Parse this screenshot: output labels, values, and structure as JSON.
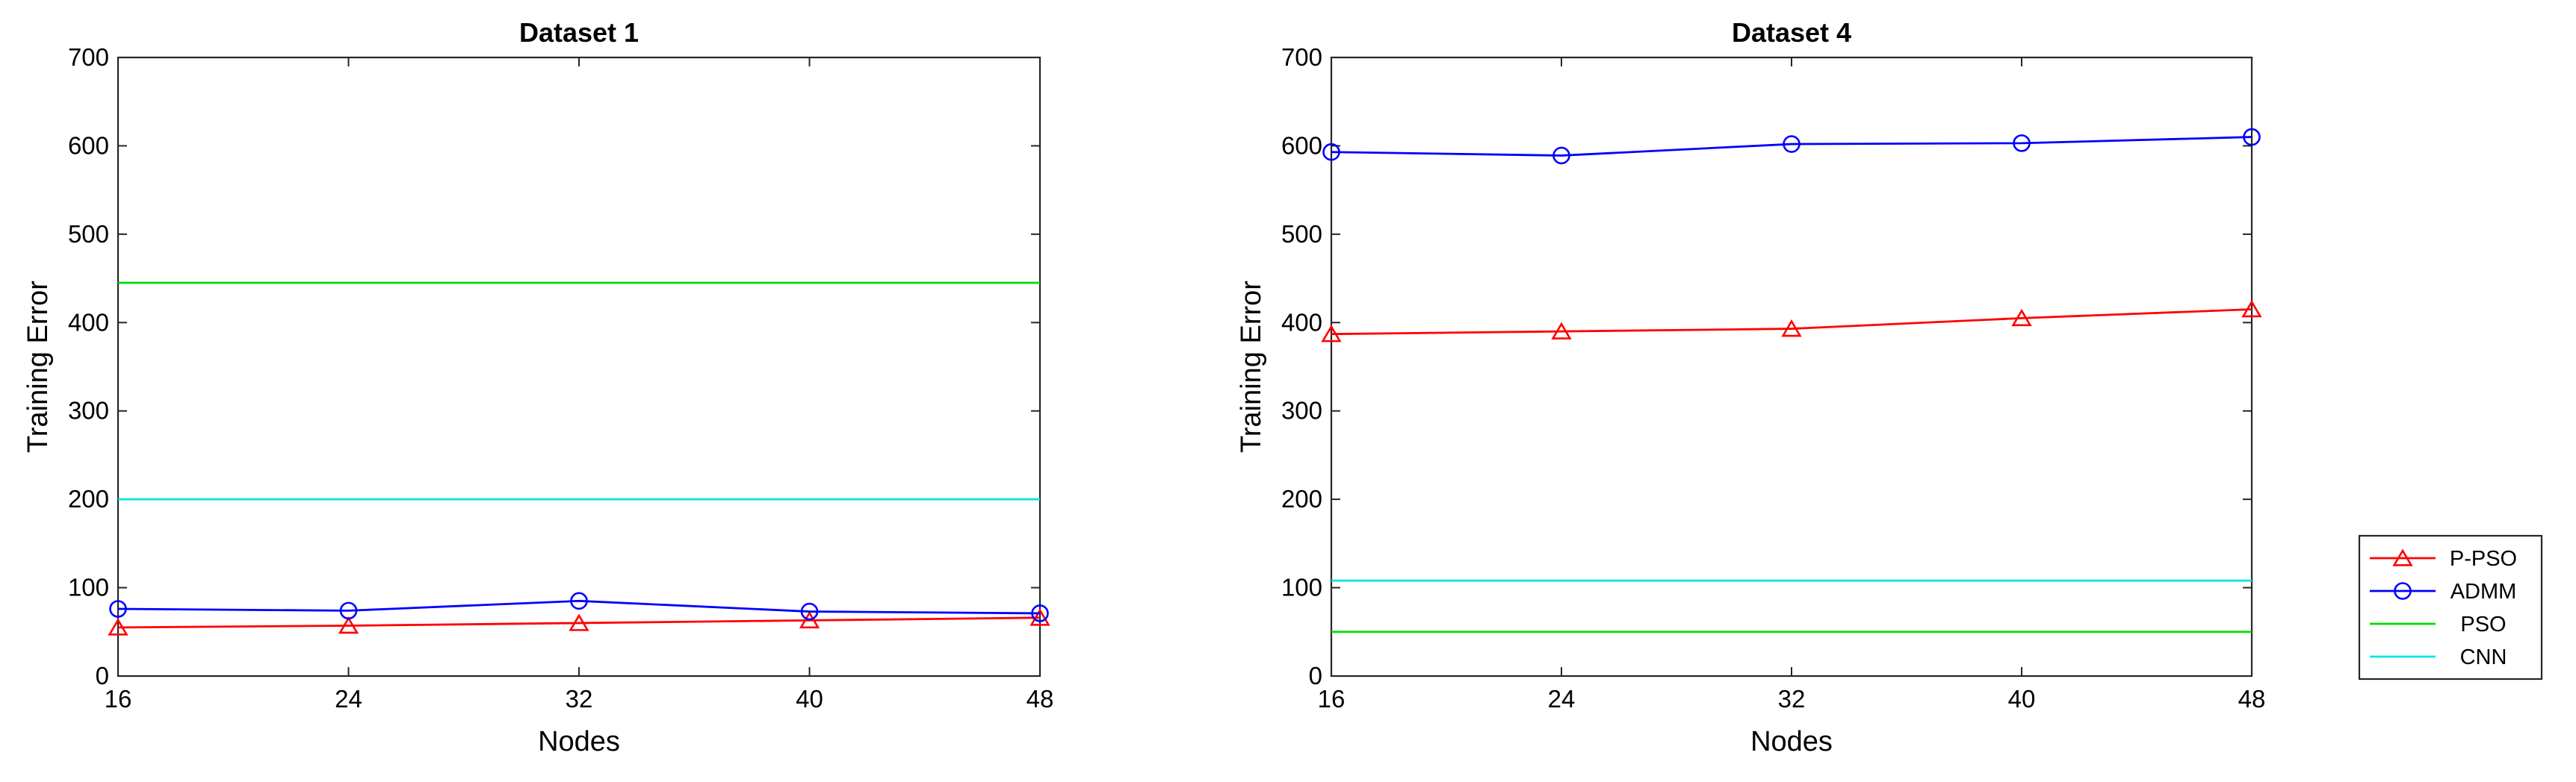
{
  "chart_data": [
    {
      "type": "line",
      "title": "Dataset 1",
      "xlabel": "Nodes",
      "ylabel": "Training Error",
      "xlim": [
        16,
        48
      ],
      "ylim": [
        0,
        700
      ],
      "xticks": [
        16,
        24,
        32,
        40,
        48
      ],
      "yticks": [
        0,
        100,
        200,
        300,
        400,
        500,
        600,
        700
      ],
      "grid": false,
      "x": [
        16,
        24,
        32,
        40,
        48
      ],
      "series": [
        {
          "name": "P-PSO",
          "color": "#ff0000",
          "marker": "triangle",
          "values": [
            55,
            57,
            60,
            63,
            66
          ]
        },
        {
          "name": "ADMM",
          "color": "#0000ff",
          "marker": "circle",
          "values": [
            76,
            74,
            85,
            73,
            71
          ]
        },
        {
          "name": "PSO",
          "color": "#00dd00",
          "marker": "none",
          "values": [
            445,
            445,
            445,
            445,
            445
          ]
        },
        {
          "name": "CNN",
          "color": "#00e5e5",
          "marker": "none",
          "values": [
            200,
            200,
            200,
            200,
            200
          ]
        }
      ]
    },
    {
      "type": "line",
      "title": "Dataset 4",
      "xlabel": "Nodes",
      "ylabel": "Training Error",
      "xlim": [
        16,
        48
      ],
      "ylim": [
        0,
        700
      ],
      "xticks": [
        16,
        24,
        32,
        40,
        48
      ],
      "yticks": [
        0,
        100,
        200,
        300,
        400,
        500,
        600,
        700
      ],
      "grid": false,
      "x": [
        16,
        24,
        32,
        40,
        48
      ],
      "series": [
        {
          "name": "P-PSO",
          "color": "#ff0000",
          "marker": "triangle",
          "values": [
            387,
            390,
            393,
            405,
            415
          ]
        },
        {
          "name": "ADMM",
          "color": "#0000ff",
          "marker": "circle",
          "values": [
            593,
            589,
            602,
            603,
            610
          ]
        },
        {
          "name": "PSO",
          "color": "#00dd00",
          "marker": "none",
          "values": [
            50,
            50,
            50,
            50,
            50
          ]
        },
        {
          "name": "CNN",
          "color": "#00e5e5",
          "marker": "none",
          "values": [
            108,
            108,
            108,
            108,
            108
          ]
        }
      ]
    }
  ],
  "legend": {
    "placement": "right-bottom",
    "entries": [
      {
        "label": "P-PSO",
        "color": "#ff0000",
        "marker": "triangle"
      },
      {
        "label": "ADMM",
        "color": "#0000ff",
        "marker": "circle"
      },
      {
        "label": "PSO",
        "color": "#00dd00",
        "marker": "none"
      },
      {
        "label": "CNN",
        "color": "#00e5e5",
        "marker": "none"
      }
    ]
  }
}
